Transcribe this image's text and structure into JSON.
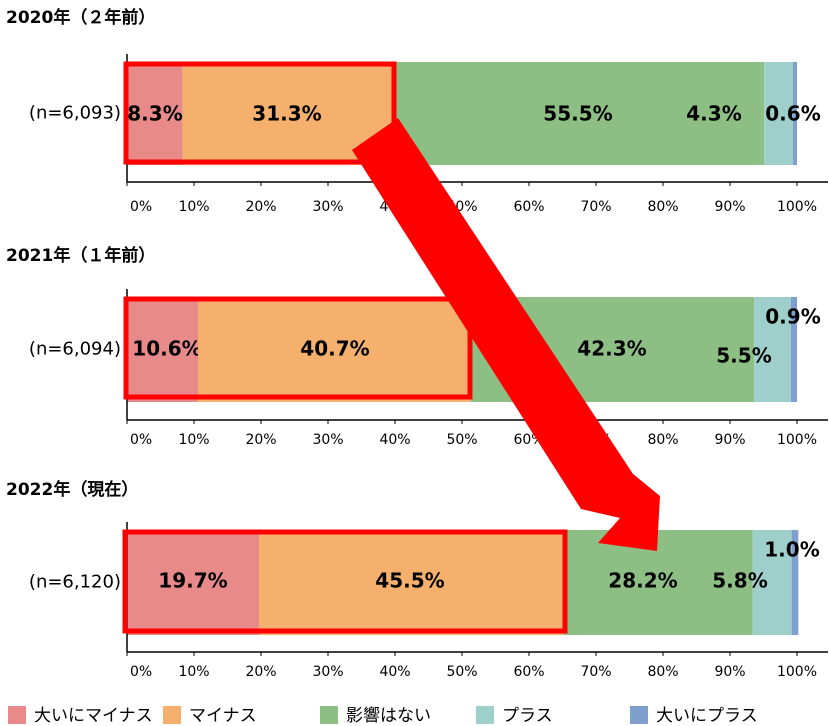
{
  "chart_data": [
    {
      "type": "bar",
      "title": "2020年（２年前）",
      "categories": [
        "(n=6,093)"
      ],
      "series": [
        {
          "name": "大いにマイナス",
          "color": "#e8898a",
          "values": [
            8.3
          ],
          "value_labels": [
            "8.3%"
          ]
        },
        {
          "name": "マイナス",
          "color": "#f4b06c",
          "values": [
            31.3
          ],
          "value_labels": [
            "31.3%"
          ]
        },
        {
          "name": "影響はない",
          "color": "#8dbf85",
          "values": [
            55.5
          ],
          "value_labels": [
            "55.5%"
          ]
        },
        {
          "name": "プラス",
          "color": "#9fcfcb",
          "values": [
            4.3
          ],
          "value_labels": [
            "4.3%"
          ]
        },
        {
          "name": "大いにプラス",
          "color": "#7f9fcf",
          "values": [
            0.6
          ],
          "value_labels": [
            "0.6%"
          ]
        }
      ],
      "xlim": [
        0,
        100
      ],
      "xticks": [
        {
          "value": 0,
          "label": "0%"
        },
        {
          "value": 10,
          "label": "10%"
        },
        {
          "value": 20,
          "label": "20%"
        },
        {
          "value": 30,
          "label": "30%"
        },
        {
          "value": 40,
          "label": "40%"
        },
        {
          "value": 50,
          "label": "50%"
        },
        {
          "value": 60,
          "label": "60%"
        },
        {
          "value": 70,
          "label": "70%"
        },
        {
          "value": 80,
          "label": "80%"
        },
        {
          "value": 90,
          "label": "90%"
        },
        {
          "value": 100,
          "label": "100%"
        }
      ]
    },
    {
      "type": "bar",
      "title": "2021年（１年前）",
      "categories": [
        "(n=6,094)"
      ],
      "series": [
        {
          "name": "大いにマイナス",
          "color": "#e8898a",
          "values": [
            10.6
          ],
          "value_labels": [
            "10.6%"
          ]
        },
        {
          "name": "マイナス",
          "color": "#f4b06c",
          "values": [
            40.7
          ],
          "value_labels": [
            "40.7%"
          ]
        },
        {
          "name": "影響はない",
          "color": "#8dbf85",
          "values": [
            42.3
          ],
          "value_labels": [
            "42.3%"
          ]
        },
        {
          "name": "プラス",
          "color": "#9fcfcb",
          "values": [
            5.5
          ],
          "value_labels": [
            "5.5%"
          ]
        },
        {
          "name": "大いにプラス",
          "color": "#7f9fcf",
          "values": [
            0.9
          ],
          "value_labels": [
            "0.9%"
          ]
        }
      ],
      "xlim": [
        0,
        100
      ],
      "xticks": [
        {
          "value": 0,
          "label": "0%"
        },
        {
          "value": 10,
          "label": "10%"
        },
        {
          "value": 20,
          "label": "20%"
        },
        {
          "value": 30,
          "label": "30%"
        },
        {
          "value": 40,
          "label": "40%"
        },
        {
          "value": 50,
          "label": "50%"
        },
        {
          "value": 60,
          "label": "60%"
        },
        {
          "value": 70,
          "label": "70%"
        },
        {
          "value": 80,
          "label": "80%"
        },
        {
          "value": 90,
          "label": "90%"
        },
        {
          "value": 100,
          "label": "100%"
        }
      ]
    },
    {
      "type": "bar",
      "title": "2022年（現在）",
      "categories": [
        "(n=6,120)"
      ],
      "series": [
        {
          "name": "大いにマイナス",
          "color": "#e8898a",
          "values": [
            19.7
          ],
          "value_labels": [
            "19.7%"
          ]
        },
        {
          "name": "マイナス",
          "color": "#f4b06c",
          "values": [
            45.5
          ],
          "value_labels": [
            "45.5%"
          ]
        },
        {
          "name": "影響はない",
          "color": "#8dbf85",
          "values": [
            28.2
          ],
          "value_labels": [
            "28.2%"
          ]
        },
        {
          "name": "プラス",
          "color": "#9fcfcb",
          "values": [
            5.8
          ],
          "value_labels": [
            "5.8%"
          ]
        },
        {
          "name": "大いにプラス",
          "color": "#7f9fcf",
          "values": [
            1.0
          ],
          "value_labels": [
            "1.0%"
          ]
        }
      ],
      "xlim": [
        0,
        100
      ],
      "xticks": [
        {
          "value": 0,
          "label": "0%"
        },
        {
          "value": 10,
          "label": "10%"
        },
        {
          "value": 20,
          "label": "20%"
        },
        {
          "value": 30,
          "label": "30%"
        },
        {
          "value": 40,
          "label": "40%"
        },
        {
          "value": 50,
          "label": "50%"
        },
        {
          "value": 60,
          "label": "60%"
        },
        {
          "value": 70,
          "label": "70%"
        },
        {
          "value": 80,
          "label": "80%"
        },
        {
          "value": 90,
          "label": "90%"
        },
        {
          "value": 100,
          "label": "100%"
        }
      ]
    }
  ]
}
